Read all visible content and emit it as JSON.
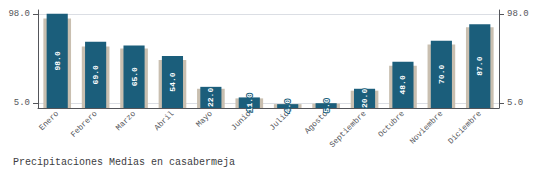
{
  "chart_data": {
    "type": "bar",
    "title": "Precipitaciones Medias en casabermeja",
    "categories": [
      "Enero",
      "Febrero",
      "Marzo",
      "Abril",
      "Mayo",
      "Junio",
      "Julio",
      "Agosto",
      "Septiembre",
      "Octubre",
      "Noviembre",
      "Diciembre"
    ],
    "series": [
      {
        "color": "#c9bfb0",
        "values": [
          93.0,
          64.0,
          62.0,
          50.0,
          20.0,
          10.0,
          4.0,
          4.5,
          18.0,
          44.0,
          66.0,
          84.0
        ]
      },
      {
        "color": "#1b5e7b",
        "values": [
          98.0,
          69.0,
          65.0,
          54.0,
          22.0,
          11.0,
          4.0,
          5.0,
          20.0,
          48.0,
          70.0,
          87.0
        ],
        "data_labels": true,
        "value_labels": [
          "98.0",
          "69.0",
          "65.0",
          "54.0",
          "22.0",
          "11.0",
          "4.0",
          "5.0",
          "20.0",
          "48.0",
          "70.0",
          "87.0"
        ]
      }
    ],
    "ylim": [
      0,
      101.92
    ],
    "yticks": [
      {
        "value": 5.0,
        "label": "5.0"
      },
      {
        "value": 98.0,
        "label": "98.0"
      }
    ],
    "y2lim": [
      0,
      101.92
    ],
    "y2ticks": [
      {
        "value": 5.0,
        "label": "5.0"
      },
      {
        "value": 98.0,
        "label": "98.0"
      }
    ],
    "grid": true
  }
}
